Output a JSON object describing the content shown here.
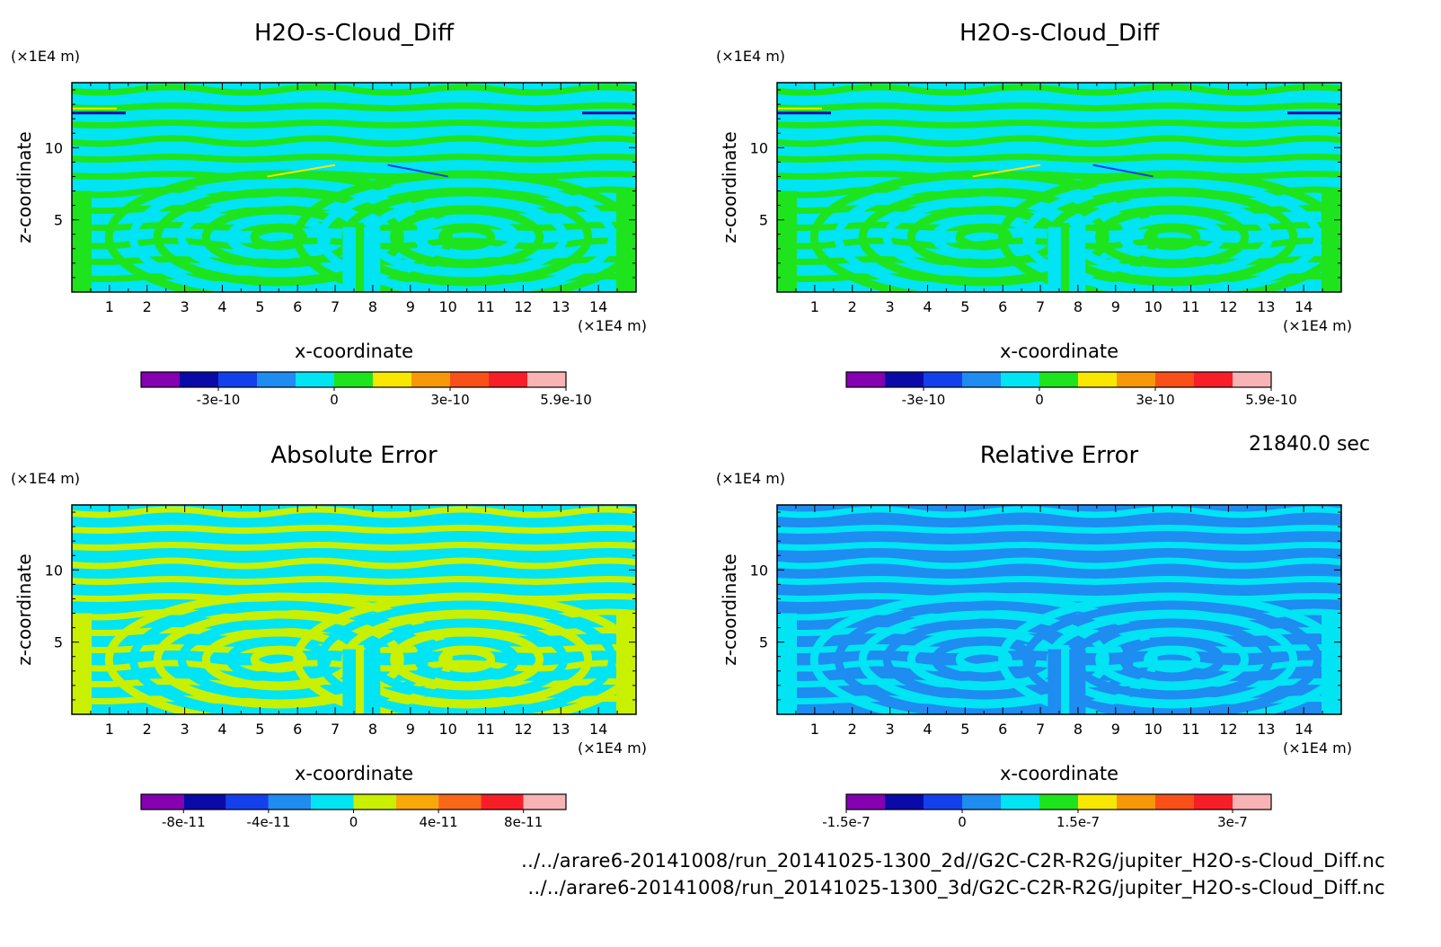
{
  "time_label": "21840.0 sec",
  "file_paths": [
    "../../arare6-20141008/run_20141025-1300_2d//G2C-C2R-R2G/jupiter_H2O-s-Cloud_Diff.nc",
    "../../arare6-20141008/run_20141025-1300_3d/G2C-C2R-R2G/jupiter_H2O-s-Cloud_Diff.nc"
  ],
  "chart_data": [
    {
      "type": "heatmap",
      "title": "H2O-s-Cloud_Diff",
      "xlabel": "x-coordinate",
      "ylabel": "z-coordinate",
      "x_unit": "(×1E4 m)",
      "y_unit": "(×1E4 m)",
      "xlim": [
        0,
        15
      ],
      "ylim": [
        0,
        14.5
      ],
      "x_ticks": [
        "1",
        "2",
        "3",
        "4",
        "5",
        "6",
        "7",
        "8",
        "9",
        "10",
        "11",
        "12",
        "13",
        "14"
      ],
      "y_ticks": [
        "5",
        "10"
      ],
      "dominant_level_colors": [
        "#00e4f4",
        "#1ee41e"
      ],
      "colorbar": {
        "colors": [
          "#8400b0",
          "#0a0aa8",
          "#1440ec",
          "#1e8cf0",
          "#00e4f4",
          "#1ee41e",
          "#f8e800",
          "#f89808",
          "#f85018",
          "#f81e28",
          "#f8b4b4"
        ],
        "labels": [
          {
            "v": "-3e-10",
            "i": 2
          },
          {
            "v": "0",
            "i": 5
          },
          {
            "v": "3e-10",
            "i": 8
          },
          {
            "v": "5.9e-10",
            "i": 11
          }
        ]
      }
    },
    {
      "type": "heatmap",
      "title": "H2O-s-Cloud_Diff",
      "xlabel": "x-coordinate",
      "ylabel": "z-coordinate",
      "x_unit": "(×1E4 m)",
      "y_unit": "(×1E4 m)",
      "xlim": [
        0,
        15
      ],
      "ylim": [
        0,
        14.5
      ],
      "x_ticks": [
        "1",
        "2",
        "3",
        "4",
        "5",
        "6",
        "7",
        "8",
        "9",
        "10",
        "11",
        "12",
        "13",
        "14"
      ],
      "y_ticks": [
        "5",
        "10"
      ],
      "dominant_level_colors": [
        "#00e4f4",
        "#1ee41e"
      ],
      "colorbar": {
        "colors": [
          "#8400b0",
          "#0a0aa8",
          "#1440ec",
          "#1e8cf0",
          "#00e4f4",
          "#1ee41e",
          "#f8e800",
          "#f89808",
          "#f85018",
          "#f81e28",
          "#f8b4b4"
        ],
        "labels": [
          {
            "v": "-3e-10",
            "i": 2
          },
          {
            "v": "0",
            "i": 5
          },
          {
            "v": "3e-10",
            "i": 8
          },
          {
            "v": "5.9e-10",
            "i": 11
          }
        ]
      }
    },
    {
      "type": "heatmap",
      "title": "Absolute Error",
      "xlabel": "x-coordinate",
      "ylabel": "z-coordinate",
      "x_unit": "(×1E4 m)",
      "y_unit": "(×1E4 m)",
      "xlim": [
        0,
        15
      ],
      "ylim": [
        0,
        14.5
      ],
      "x_ticks": [
        "1",
        "2",
        "3",
        "4",
        "5",
        "6",
        "7",
        "8",
        "9",
        "10",
        "11",
        "12",
        "13",
        "14"
      ],
      "y_ticks": [
        "5",
        "10"
      ],
      "dominant_level_colors": [
        "#00e4f4",
        "#c8f000"
      ],
      "colorbar": {
        "colors": [
          "#8400b0",
          "#0a0aa8",
          "#1440ec",
          "#1e8cf0",
          "#00e4f4",
          "#c8f000",
          "#f8a808",
          "#f86818",
          "#f81e28",
          "#f8b4b4"
        ],
        "labels": [
          {
            "v": "-8e-11",
            "i": 1
          },
          {
            "v": "-4e-11",
            "i": 3
          },
          {
            "v": "0",
            "i": 5
          },
          {
            "v": "4e-11",
            "i": 7
          },
          {
            "v": "8e-11",
            "i": 9
          }
        ]
      }
    },
    {
      "type": "heatmap",
      "title": "Relative Error",
      "xlabel": "x-coordinate",
      "ylabel": "z-coordinate",
      "x_unit": "(×1E4 m)",
      "y_unit": "(×1E4 m)",
      "xlim": [
        0,
        15
      ],
      "ylim": [
        0,
        14.5
      ],
      "x_ticks": [
        "1",
        "2",
        "3",
        "4",
        "5",
        "6",
        "7",
        "8",
        "9",
        "10",
        "11",
        "12",
        "13",
        "14"
      ],
      "y_ticks": [
        "5",
        "10"
      ],
      "dominant_level_colors": [
        "#1e8cf0",
        "#00e4f4"
      ],
      "colorbar": {
        "colors": [
          "#8400b0",
          "#0a0aa8",
          "#1440ec",
          "#1e8cf0",
          "#00e4f4",
          "#1ee41e",
          "#f8e800",
          "#f89808",
          "#f85018",
          "#f81e28",
          "#f8b4b4"
        ],
        "labels": [
          {
            "v": "-1.5e-7",
            "i": 0
          },
          {
            "v": "0",
            "i": 3
          },
          {
            "v": "1.5e-7",
            "i": 6
          },
          {
            "v": "3e-7",
            "i": 10
          }
        ]
      }
    }
  ]
}
